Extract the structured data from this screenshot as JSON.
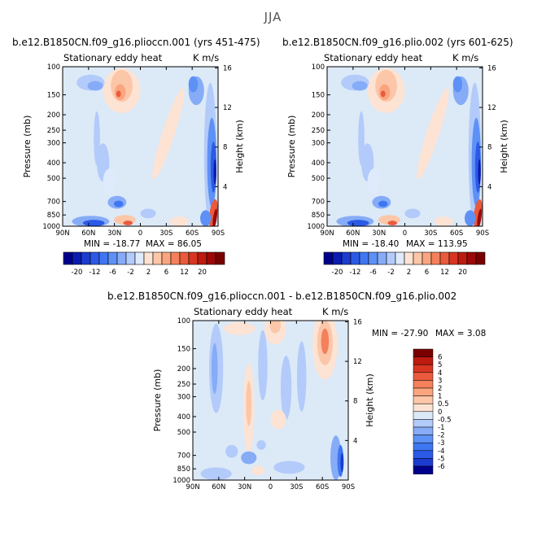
{
  "season": "JJA",
  "colors": {
    "neg": [
      "#00008c",
      "#0a1cb0",
      "#1c3ccf",
      "#2c5ae6",
      "#3f77f2",
      "#5e91f6",
      "#86acf8",
      "#b3cbfa",
      "#dfebfc"
    ],
    "zero": "#dce9f7",
    "pos": [
      "#fde3d3",
      "#fcc6a8",
      "#faa57f",
      "#f5805c",
      "#ea5a3c",
      "#d83622",
      "#bd1a10",
      "#9c0806",
      "#7a0000"
    ]
  },
  "chart_data": [
    {
      "type": "heatmap",
      "title": "b.e12.B1850CN.f09_g16.plioccn.001 (yrs 451-475)",
      "field_label": "Stationary eddy heat",
      "units": "K m/s",
      "min_label": "MIN = -18.77",
      "max_label": "MAX = 86.05",
      "ylabel": "Pressure (mb)",
      "ylabel_right": "Height (km)",
      "x_ticks": [
        "90N",
        "60N",
        "30N",
        "0",
        "30S",
        "60S",
        "90S"
      ],
      "y_ticks": [
        "100",
        "150",
        "200",
        "250",
        "300",
        "400",
        "500",
        "700",
        "850",
        "1000"
      ],
      "y2_ticks": [
        "16",
        "12",
        "8",
        "4"
      ],
      "colorbar": {
        "levels": [
          "-20",
          "-12",
          "-6",
          "-2",
          "2",
          "6",
          "12",
          "20"
        ]
      }
    },
    {
      "type": "heatmap",
      "title": "b.e12.B1850CN.f09_g16.plio.002 (yrs 601-625)",
      "field_label": "Stationary eddy heat",
      "units": "K m/s",
      "min_label": "MIN = -18.40",
      "max_label": "MAX = 113.95",
      "ylabel": "Pressure (mb)",
      "ylabel_right": "Height (km)",
      "x_ticks": [
        "90N",
        "60N",
        "30N",
        "0",
        "30S",
        "60S",
        "90S"
      ],
      "y_ticks": [
        "100",
        "150",
        "200",
        "250",
        "300",
        "400",
        "500",
        "700",
        "850",
        "1000"
      ],
      "y2_ticks": [
        "16",
        "12",
        "8",
        "4"
      ],
      "colorbar": {
        "levels": [
          "-20",
          "-12",
          "-6",
          "-2",
          "2",
          "6",
          "12",
          "20"
        ]
      }
    },
    {
      "type": "heatmap",
      "title": "b.e12.B1850CN.f09_g16.plioccn.001 - b.e12.B1850CN.f09_g16.plio.002",
      "field_label": "Stationary eddy heat",
      "units": "K m/s",
      "min_label": "MIN = -27.90",
      "max_label": "MAX =    3.08",
      "ylabel": "Pressure (mb)",
      "ylabel_right": "Height (km)",
      "x_ticks": [
        "90N",
        "60N",
        "30N",
        "0",
        "30S",
        "60S",
        "90S"
      ],
      "y_ticks": [
        "100",
        "150",
        "200",
        "250",
        "300",
        "400",
        "500",
        "700",
        "850",
        "1000"
      ],
      "y2_ticks": [
        "16",
        "12",
        "8",
        "4"
      ],
      "colorbar": {
        "levels": [
          "6",
          "5",
          "4",
          "3",
          "2",
          "1",
          "0.5",
          "0",
          "-0.5",
          "-1",
          "-2",
          "-3",
          "-4",
          "-5",
          "-6"
        ]
      }
    }
  ]
}
